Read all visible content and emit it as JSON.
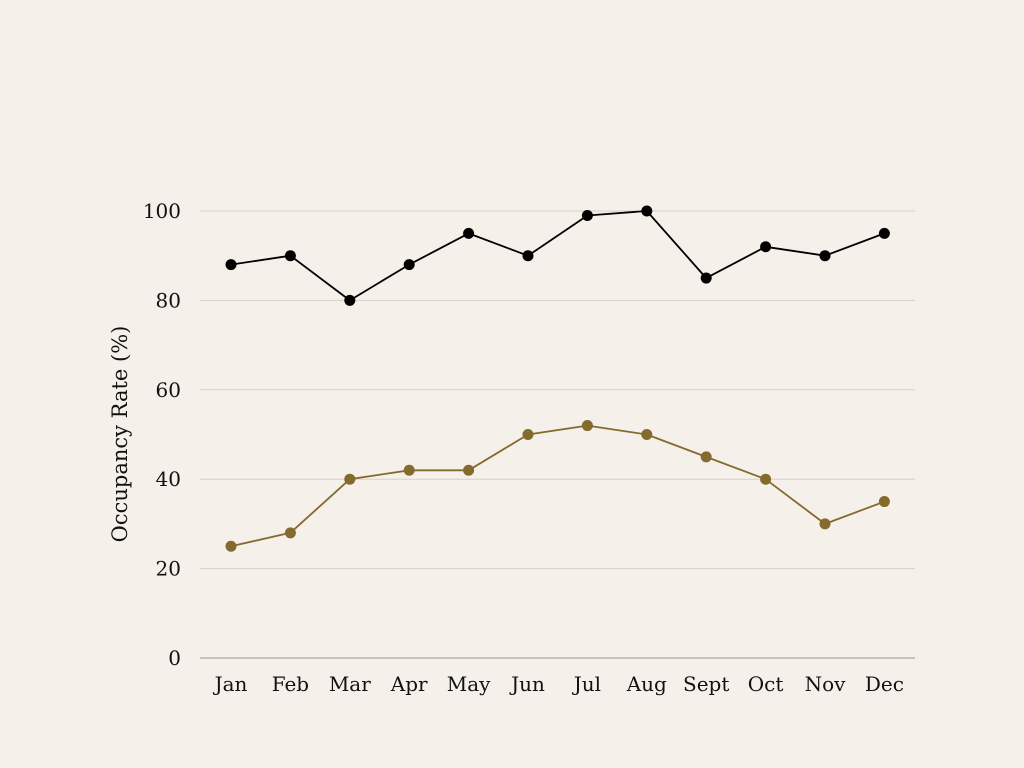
{
  "colors": {
    "background": "#f6f0eb",
    "grid": "#d6d0cb",
    "axis": "#9a9590",
    "text": "#111111"
  },
  "chart_data": {
    "type": "line",
    "title": "",
    "xlabel": "",
    "ylabel": "Occupancy Rate (%)",
    "categories": [
      "Jan",
      "Feb",
      "Mar",
      "Apr",
      "May",
      "Jun",
      "Jul",
      "Aug",
      "Sept",
      "Oct",
      "Nov",
      "Dec"
    ],
    "ylim": [
      0,
      100
    ],
    "yticks": [
      0,
      20,
      40,
      60,
      80,
      100
    ],
    "grid": true,
    "legend": "none",
    "series": [
      {
        "color": "#000000",
        "marker": "circle",
        "values": [
          88,
          90,
          80,
          88,
          95,
          90,
          99,
          100,
          85,
          92,
          90,
          95
        ]
      },
      {
        "color": "#856a2e",
        "marker": "circle",
        "values": [
          25,
          28,
          40,
          42,
          42,
          50,
          52,
          50,
          45,
          40,
          30,
          35
        ]
      }
    ]
  }
}
